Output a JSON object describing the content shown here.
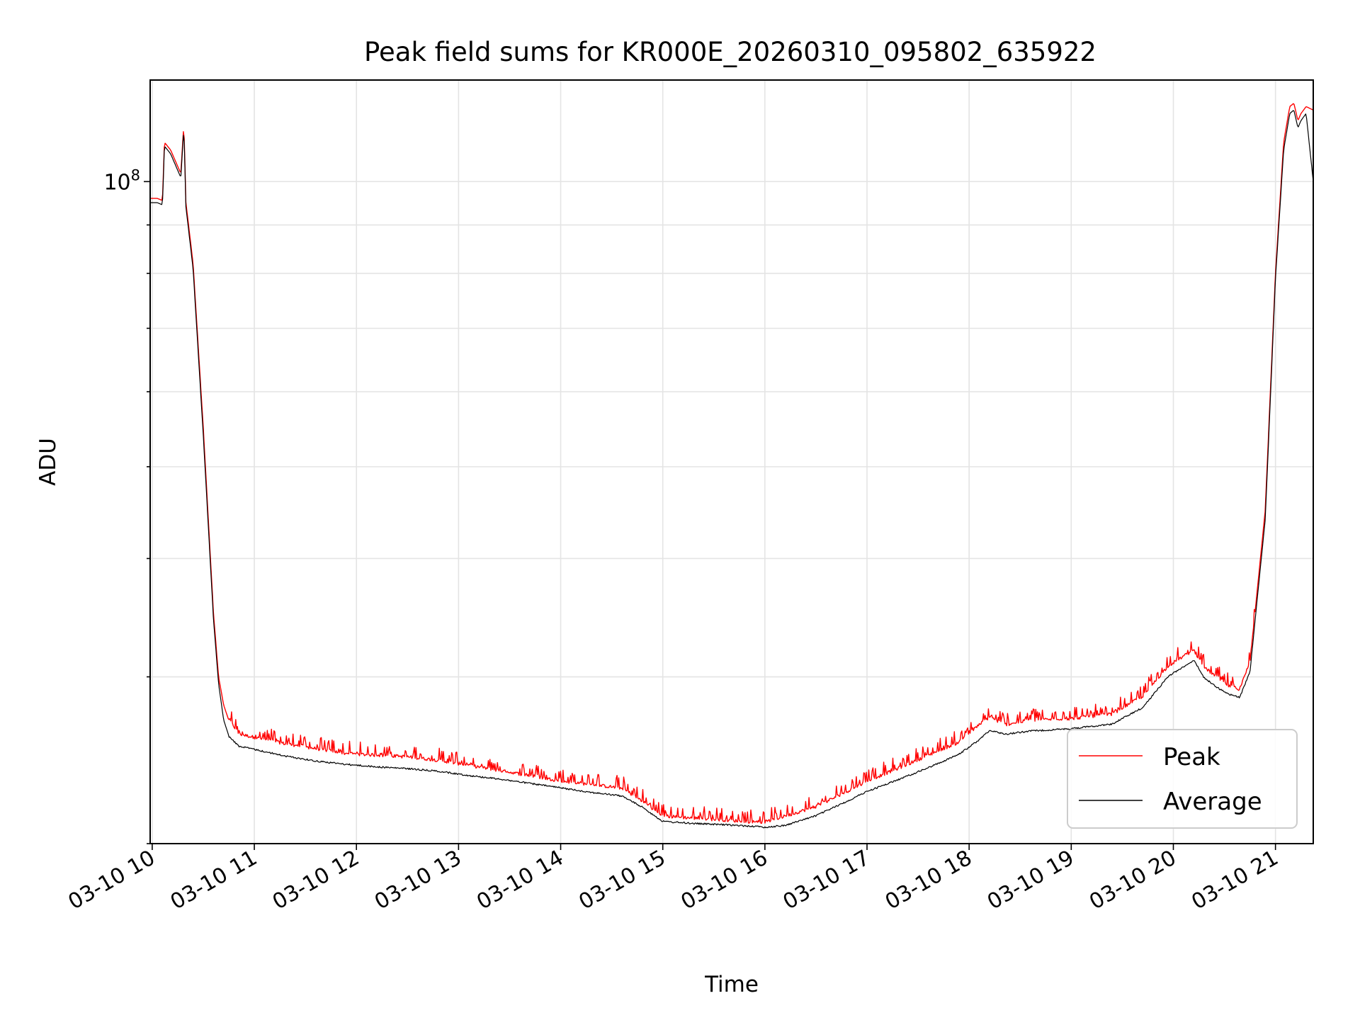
{
  "chart_data": {
    "type": "line",
    "title": "Peak field sums for KR000E_20260310_095802_635922",
    "xlabel": "Time",
    "ylabel": "ADU",
    "x_unit": "hours since 03-10 00:00",
    "xlim": [
      9.98,
      21.37
    ],
    "ylim_log": [
      20000000.0,
      128000000.0
    ],
    "yscale": "log",
    "grid": true,
    "legend_location": "lower right",
    "x_ticks": [
      {
        "value": 10,
        "label": "03-10 10"
      },
      {
        "value": 11,
        "label": "03-10 11"
      },
      {
        "value": 12,
        "label": "03-10 12"
      },
      {
        "value": 13,
        "label": "03-10 13"
      },
      {
        "value": 14,
        "label": "03-10 14"
      },
      {
        "value": 15,
        "label": "03-10 15"
      },
      {
        "value": 16,
        "label": "03-10 16"
      },
      {
        "value": 17,
        "label": "03-10 17"
      },
      {
        "value": 18,
        "label": "03-10 18"
      },
      {
        "value": 19,
        "label": "03-10 19"
      },
      {
        "value": 20,
        "label": "03-10 20"
      },
      {
        "value": 21,
        "label": "03-10 21"
      }
    ],
    "y_major_ticks": [
      {
        "value": 100000000,
        "base": "10",
        "exp": "8"
      }
    ],
    "y_minor_ticks": [
      20000000,
      30000000,
      40000000,
      50000000,
      60000000,
      70000000,
      80000000,
      90000000
    ],
    "series": [
      {
        "name": "Peak",
        "color": "#ff0000",
        "x": [
          9.98,
          10.05,
          10.1,
          10.12,
          10.18,
          10.28,
          10.31,
          10.33,
          10.4,
          10.5,
          10.6,
          10.65,
          10.7,
          10.75,
          10.85,
          11.0,
          11.3,
          11.6,
          11.9,
          12.2,
          12.5,
          12.8,
          13.1,
          13.4,
          13.7,
          14.0,
          14.3,
          14.6,
          14.8,
          15.0,
          15.3,
          15.6,
          15.9,
          16.0,
          16.2,
          16.5,
          16.8,
          17.0,
          17.3,
          17.6,
          17.9,
          18.1,
          18.2,
          18.35,
          18.6,
          19.0,
          19.4,
          19.7,
          19.95,
          20.2,
          20.3,
          20.45,
          20.55,
          20.65,
          20.75,
          20.9,
          21.0,
          21.08,
          21.14,
          21.18,
          21.22,
          21.25,
          21.3,
          21.37
        ],
        "y": [
          96000000,
          96000000,
          95500000,
          110000000,
          108000000,
          102000000,
          115000000,
          95000000,
          82000000,
          55000000,
          35000000,
          30000000,
          28000000,
          27000000,
          26000000,
          25800000,
          25400000,
          25100000,
          24800000,
          24700000,
          24600000,
          24400000,
          24100000,
          23800000,
          23500000,
          23200000,
          23000000,
          22800000,
          22100000,
          21300000,
          21200000,
          21100000,
          21000000,
          21000000,
          21300000,
          21800000,
          22600000,
          23200000,
          23900000,
          24700000,
          25500000,
          26600000,
          27100000,
          26600000,
          26900000,
          27000000,
          27300000,
          28500000,
          30700000,
          31900000,
          30600000,
          29700000,
          29200000,
          29000000,
          31000000,
          45000000,
          80000000,
          110000000,
          120000000,
          121000000,
          116000000,
          118000000,
          120000000,
          119000000
        ]
      },
      {
        "name": "Average",
        "color": "#000000",
        "x": [
          9.98,
          10.05,
          10.1,
          10.12,
          10.18,
          10.28,
          10.31,
          10.33,
          10.4,
          10.5,
          10.6,
          10.65,
          10.7,
          10.75,
          10.85,
          11.0,
          11.3,
          11.6,
          11.9,
          12.2,
          12.5,
          12.8,
          13.1,
          13.4,
          13.7,
          14.0,
          14.3,
          14.6,
          14.8,
          15.0,
          15.3,
          15.6,
          15.9,
          16.0,
          16.2,
          16.5,
          16.8,
          17.0,
          17.3,
          17.6,
          17.9,
          18.1,
          18.2,
          18.35,
          18.6,
          19.0,
          19.4,
          19.7,
          19.95,
          20.2,
          20.3,
          20.45,
          20.55,
          20.65,
          20.75,
          20.9,
          21.0,
          21.08,
          21.14,
          21.18,
          21.22,
          21.25,
          21.3,
          21.37
        ],
        "y": [
          95000000,
          95000000,
          94500000,
          109000000,
          107000000,
          101000000,
          114000000,
          94000000,
          81000000,
          54000000,
          34500000,
          29500000,
          27000000,
          26000000,
          25400000,
          25200000,
          24800000,
          24500000,
          24300000,
          24150000,
          24050000,
          23900000,
          23650000,
          23450000,
          23200000,
          22950000,
          22700000,
          22500000,
          21900000,
          21150000,
          21050000,
          20980000,
          20900000,
          20850000,
          20950000,
          21450000,
          22200000,
          22750000,
          23400000,
          24100000,
          24900000,
          25800000,
          26400000,
          26150000,
          26350000,
          26500000,
          26800000,
          27900000,
          30100000,
          31300000,
          30000000,
          29200000,
          28800000,
          28600000,
          30400000,
          44000000,
          79000000,
          108000000,
          118000000,
          119000000,
          114000000,
          116000000,
          118000000,
          100000000
        ]
      }
    ]
  }
}
